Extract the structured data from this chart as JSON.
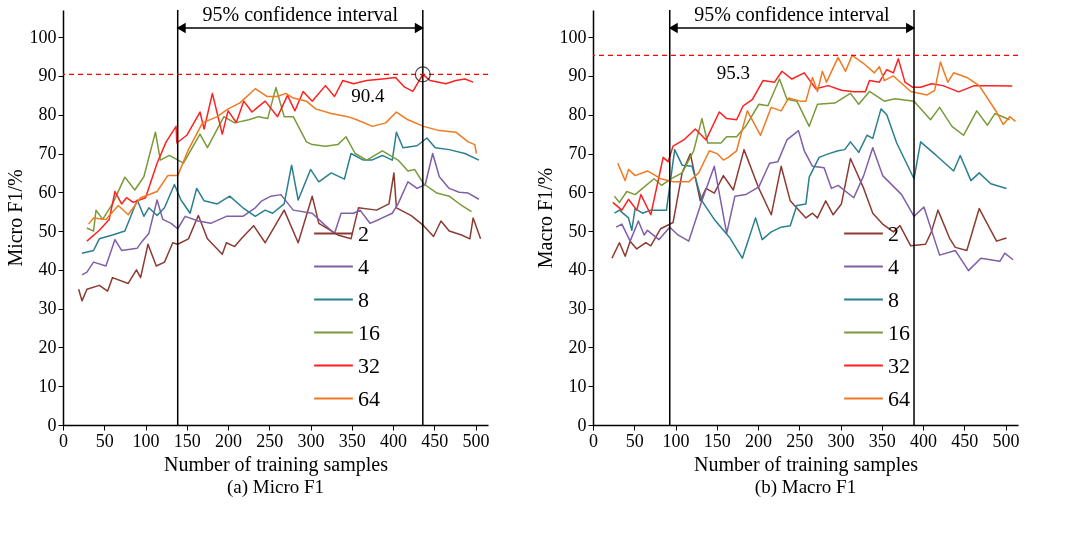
{
  "chart_data": [
    {
      "type": "line",
      "title": "(a) Micro F1",
      "xlabel": "Number of training samples",
      "ylabel": "Micro F1/%",
      "xlim": [
        0,
        515
      ],
      "ylim": [
        0,
        107
      ],
      "xticks": [
        0,
        50,
        100,
        150,
        200,
        250,
        300,
        350,
        400,
        450,
        500
      ],
      "yticks": [
        0,
        10,
        20,
        30,
        40,
        50,
        60,
        70,
        80,
        90,
        100
      ],
      "grid": false,
      "legend": "bottom right",
      "ref_lines": [
        {
          "axis": "x",
          "value": 139,
          "color": "#000000",
          "line_style": "solid"
        },
        {
          "axis": "x",
          "value": 436,
          "color": "#000000",
          "line_style": "solid"
        },
        {
          "axis": "y",
          "value": 90.4,
          "color": "#ff0000",
          "line_style": "dashed"
        }
      ],
      "annotations": [
        "95% confidence interval",
        {
          "text": "90.4",
          "x": 436,
          "y": 90.4
        }
      ],
      "series": [
        {
          "name": "2",
          "color": "#8c3b32",
          "x": [
            19,
            23,
            29,
            44,
            54,
            60,
            79,
            89,
            94,
            103,
            113,
            123,
            133,
            139,
            152,
            164,
            175,
            193,
            198,
            208,
            216,
            231,
            245,
            268,
            285,
            302,
            310,
            333,
            349,
            358,
            380,
            395,
            401,
            404,
            422,
            437,
            449,
            458,
            468,
            483,
            493,
            497,
            506
          ],
          "values": [
            35,
            32,
            35,
            36,
            34.5,
            38,
            36.5,
            40,
            38,
            46.6,
            41,
            42,
            47,
            46.6,
            48,
            54,
            48,
            44,
            47,
            46,
            48,
            51.4,
            47,
            55.4,
            47,
            59,
            52,
            49,
            48,
            56,
            55.4,
            57,
            65,
            56,
            54,
            51.4,
            48.6,
            52.6,
            50,
            49,
            48,
            53.4,
            48
          ]
        },
        {
          "name": "4",
          "color": "#7f5fa8",
          "x": [
            23,
            29,
            37,
            52,
            63,
            71,
            90,
            96,
            104,
            114,
            121,
            131,
            139,
            148,
            164,
            179,
            198,
            218,
            233,
            241,
            252,
            264,
            279,
            302,
            318,
            329,
            337,
            352,
            360,
            372,
            383,
            399,
            406,
            418,
            429,
            439,
            448,
            456,
            468,
            480,
            491,
            504
          ],
          "values": [
            38.7,
            39.4,
            42,
            41,
            47.8,
            45,
            45.6,
            47.4,
            49.4,
            58,
            53,
            52,
            50.6,
            53.8,
            52.6,
            52,
            53.8,
            53.8,
            56,
            57.8,
            59,
            59.4,
            55.4,
            54.6,
            51.4,
            49.4,
            54.6,
            54.6,
            55.4,
            52,
            53,
            54.6,
            57,
            62.7,
            61,
            62,
            70,
            64,
            61,
            60,
            59.8,
            58.2
          ]
        },
        {
          "name": "8",
          "color": "#2a7f8e",
          "x": [
            23,
            37,
            44,
            60,
            75,
            90,
            98,
            104,
            114,
            123,
            135,
            143,
            154,
            162,
            171,
            187,
            202,
            218,
            233,
            245,
            254,
            268,
            277,
            285,
            300,
            310,
            325,
            341,
            349,
            364,
            374,
            387,
            399,
            404,
            412,
            429,
            441,
            451,
            468,
            487,
            504
          ],
          "values": [
            44.3,
            45,
            48,
            49,
            50,
            58,
            53.8,
            56,
            54,
            56,
            62,
            58,
            54.6,
            61,
            57.8,
            57,
            59,
            56,
            53.8,
            55.4,
            54.6,
            57,
            67,
            58,
            65.9,
            62.7,
            65,
            63.4,
            70,
            68.3,
            68.3,
            69.5,
            68.3,
            75.5,
            71.5,
            72,
            74,
            71.5,
            71,
            70,
            68.3
          ]
        },
        {
          "name": "16",
          "color": "#7a9a3a",
          "x": [
            29,
            37,
            40,
            48,
            60,
            75,
            87,
            98,
            112,
            118,
            129,
            146,
            166,
            175,
            195,
            208,
            225,
            237,
            248,
            258,
            268,
            279,
            295,
            302,
            318,
            333,
            343,
            354,
            368,
            387,
            406,
            418,
            426,
            437,
            453,
            468,
            483,
            495
          ],
          "values": [
            50.8,
            50,
            55.4,
            53,
            57,
            63.9,
            60.6,
            64,
            75.5,
            68.3,
            69.5,
            67.5,
            75,
            71.5,
            79.5,
            77.9,
            78.7,
            79.5,
            79,
            87,
            79.5,
            79.5,
            73,
            72.3,
            71.9,
            72.3,
            74.3,
            70,
            68.3,
            70.7,
            68.3,
            65.5,
            65.9,
            62.2,
            59.8,
            59,
            56.6,
            55
          ]
        },
        {
          "name": "32",
          "color": "#ff2020",
          "x": [
            29,
            44,
            56,
            63,
            71,
            77,
            85,
            100,
            114,
            125,
            137,
            138,
            150,
            166,
            171,
            181,
            193,
            200,
            210,
            219,
            229,
            245,
            260,
            272,
            281,
            291,
            302,
            318,
            329,
            339,
            352,
            368,
            387,
            403,
            414,
            424,
            436,
            445,
            464,
            476,
            487,
            497
          ],
          "values": [
            47.4,
            50.2,
            53,
            60.2,
            57,
            58.6,
            57.4,
            58.6,
            67.5,
            73,
            77,
            72.7,
            74.7,
            80.7,
            76.3,
            85.5,
            75,
            81,
            78,
            83.5,
            80.7,
            83.5,
            79.5,
            85,
            81,
            86,
            83.5,
            87.5,
            84.7,
            88.8,
            88,
            88.8,
            89.2,
            89.6,
            87.1,
            86,
            90.4,
            88.8,
            88,
            88.8,
            89.2,
            88.4
          ]
        },
        {
          "name": "64",
          "color": "#f07a22",
          "x": [
            31,
            37,
            52,
            67,
            79,
            94,
            114,
            127,
            139,
            152,
            169,
            187,
            200,
            214,
            233,
            247,
            260,
            270,
            279,
            295,
            306,
            325,
            345,
            356,
            375,
            391,
            404,
            418,
            437,
            456,
            476,
            491,
            499,
            501
          ],
          "values": [
            51.8,
            53.4,
            53,
            56.6,
            54.2,
            58.6,
            60.2,
            64.3,
            64.3,
            71,
            77.9,
            79.5,
            81.5,
            83,
            86.7,
            84.7,
            84.7,
            85.5,
            84.3,
            83.5,
            81.5,
            80.3,
            79.5,
            78.7,
            77,
            77.9,
            80.7,
            78.7,
            77,
            75.9,
            75.5,
            73,
            72.3,
            70
          ]
        }
      ]
    },
    {
      "type": "line",
      "title": "(b) Macro F1",
      "xlabel": "Number of training samples",
      "ylabel": "Macro F1/%",
      "xlim": [
        0,
        515
      ],
      "ylim": [
        0,
        107
      ],
      "xticks": [
        0,
        50,
        100,
        150,
        200,
        250,
        300,
        350,
        400,
        450,
        500
      ],
      "yticks": [
        0,
        10,
        20,
        30,
        40,
        50,
        60,
        70,
        80,
        90,
        100
      ],
      "grid": false,
      "legend": "bottom right",
      "ref_lines": [
        {
          "axis": "x",
          "value": 93,
          "color": "#000000",
          "line_style": "solid"
        },
        {
          "axis": "x",
          "value": 389,
          "color": "#000000",
          "line_style": "solid"
        },
        {
          "axis": "y",
          "value": 95.3,
          "label": "95.3",
          "color": "#ff0000",
          "line_style": "dashed"
        }
      ],
      "annotations": [
        "95% confidence interval"
      ],
      "series": [
        {
          "name": "2",
          "color": "#8c3b32",
          "x": [
            23,
            32,
            39,
            45,
            53,
            64,
            70,
            82,
            97,
            108,
            118,
            130,
            137,
            147,
            158,
            170,
            183,
            201,
            216,
            228,
            239,
            258,
            266,
            272,
            282,
            291,
            301,
            312,
            328,
            339,
            351,
            364,
            372,
            385,
            403,
            410,
            418,
            432,
            439,
            453,
            468,
            489,
            501
          ],
          "values": [
            43,
            47,
            43.5,
            47.4,
            45.4,
            47,
            46.2,
            50.6,
            52.2,
            65,
            69.9,
            57.8,
            61,
            59.8,
            64.3,
            60.6,
            71,
            61,
            54.2,
            66.7,
            57.8,
            53.4,
            54.6,
            53.4,
            57.8,
            54.2,
            57,
            68.7,
            61,
            54.6,
            51.8,
            49.8,
            51.4,
            46.2,
            46.6,
            49.8,
            55.4,
            48.2,
            45.8,
            45,
            55.8,
            47.4,
            48.2
          ]
        },
        {
          "name": "4",
          "color": "#7f5fa8",
          "x": [
            28,
            35,
            45,
            55,
            62,
            66,
            80,
            93,
            103,
            116,
            132,
            147,
            162,
            172,
            185,
            201,
            214,
            224,
            235,
            249,
            256,
            266,
            280,
            289,
            297,
            316,
            328,
            339,
            351,
            374,
            389,
            401,
            420,
            439,
            455,
            470,
            493,
            499,
            509
          ],
          "values": [
            51,
            51.8,
            47.4,
            52.6,
            49,
            50.2,
            47.8,
            51,
            49,
            47.4,
            57.8,
            66.7,
            49.4,
            59,
            59.4,
            61.4,
            67.5,
            67.9,
            73.5,
            75.9,
            70.7,
            66.7,
            66.3,
            61,
            61.8,
            58.6,
            64.3,
            71.5,
            64.3,
            59.4,
            53.8,
            56.2,
            43.8,
            45,
            39.8,
            43,
            42.2,
            44.3,
            42.6
          ]
        },
        {
          "name": "8",
          "color": "#2a7f8e",
          "x": [
            26,
            32,
            43,
            47,
            51,
            60,
            70,
            89,
            99,
            108,
            120,
            132,
            147,
            166,
            181,
            197,
            205,
            216,
            228,
            239,
            247,
            258,
            262,
            274,
            285,
            297,
            305,
            312,
            322,
            332,
            339,
            349,
            356,
            368,
            389,
            397,
            405,
            416,
            437,
            445,
            458,
            468,
            482,
            501
          ],
          "values": [
            54.6,
            55.4,
            53.4,
            50.2,
            55.8,
            54.6,
            55.4,
            55.4,
            71,
            67,
            66.7,
            57.8,
            53,
            48.2,
            43,
            53.4,
            47.8,
            49.8,
            51,
            51.4,
            56.6,
            57,
            63.9,
            69,
            69.9,
            70.7,
            71,
            73,
            70.3,
            74.7,
            73.9,
            81.5,
            80,
            72.7,
            63.5,
            73,
            71.5,
            69.5,
            65.5,
            69.5,
            63,
            65,
            62.2,
            61
          ]
        },
        {
          "name": "16",
          "color": "#7a9a3a",
          "x": [
            26,
            32,
            41,
            51,
            60,
            74,
            83,
            95,
            108,
            122,
            132,
            139,
            155,
            162,
            174,
            185,
            201,
            212,
            226,
            235,
            247,
            262,
            272,
            293,
            312,
            322,
            335,
            353,
            366,
            389,
            409,
            420,
            435,
            449,
            465,
            478,
            487,
            505
          ],
          "values": [
            59,
            57.4,
            60.2,
            59.4,
            61,
            63.5,
            61.8,
            63.5,
            65,
            70.7,
            79,
            72.7,
            72.7,
            74.3,
            74.3,
            77,
            82.7,
            82.3,
            89.2,
            84,
            83.5,
            77,
            82.7,
            83,
            85.5,
            82.7,
            86,
            83.5,
            84.1,
            83.5,
            78.7,
            81.9,
            77,
            74.7,
            81,
            77.3,
            80.3,
            78.7
          ]
        },
        {
          "name": "32",
          "color": "#ff2020",
          "x": [
            24,
            35,
            43,
            53,
            58,
            70,
            85,
            91,
            97,
            110,
            124,
            137,
            153,
            162,
            174,
            182,
            193,
            206,
            220,
            229,
            241,
            256,
            270,
            285,
            301,
            316,
            330,
            335,
            347,
            356,
            364,
            370,
            378,
            387,
            397,
            410,
            424,
            443,
            462,
            485,
            508
          ],
          "values": [
            57.4,
            55.4,
            58.2,
            55.4,
            59.4,
            54.2,
            69,
            67.9,
            71.9,
            73.5,
            76.3,
            73.5,
            80.7,
            79,
            78.7,
            82.3,
            83.9,
            88.8,
            88.4,
            91.2,
            89.2,
            90.8,
            86.7,
            87.5,
            86.3,
            85.9,
            85.9,
            88.8,
            88.4,
            91.6,
            90.8,
            94.4,
            88.4,
            87.1,
            87.1,
            88,
            87.5,
            85.9,
            87.5,
            87.5,
            87.4
          ]
        },
        {
          "name": "64",
          "color": "#f07a22",
          "x": [
            30,
            39,
            43,
            51,
            66,
            82,
            97,
            116,
            128,
            141,
            151,
            158,
            164,
            174,
            187,
            203,
            216,
            228,
            237,
            251,
            258,
            266,
            272,
            278,
            283,
            297,
            306,
            314,
            328,
            341,
            347,
            353,
            364,
            385,
            405,
            414,
            421,
            430,
            437,
            453,
            468,
            489,
            497,
            505,
            512
          ],
          "values": [
            67.5,
            63,
            65.9,
            64.3,
            65.5,
            63.5,
            62.7,
            62.7,
            65,
            70.7,
            69.9,
            68.3,
            69,
            70.7,
            81,
            74.7,
            81.9,
            81,
            84.3,
            83.5,
            83.5,
            89.6,
            86,
            91.2,
            88.4,
            94.8,
            91.2,
            95.3,
            93.2,
            90.8,
            92.4,
            88.8,
            90,
            86,
            85.1,
            86.3,
            93.6,
            88.4,
            90.8,
            89.6,
            87.5,
            80.7,
            77.5,
            79.5,
            78.3
          ]
        }
      ]
    }
  ]
}
